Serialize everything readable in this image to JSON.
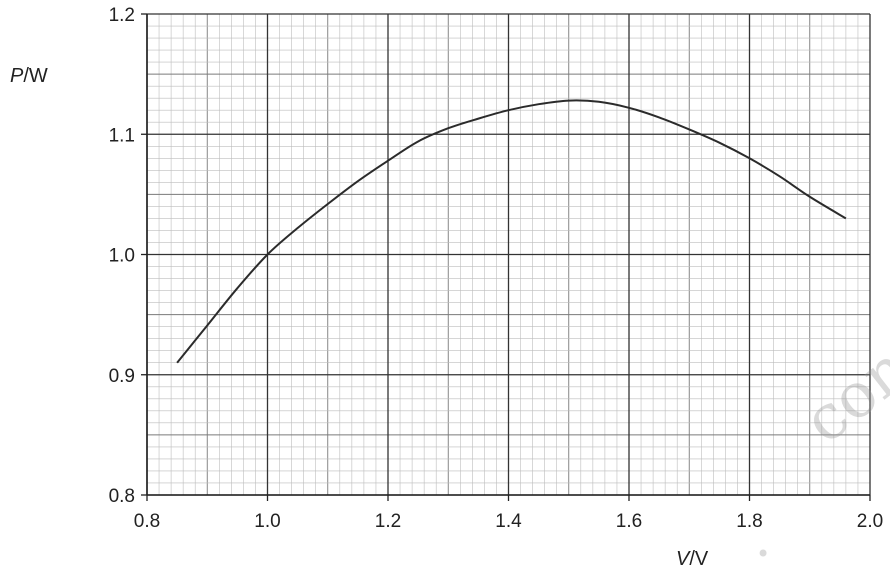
{
  "chart_data": {
    "type": "line",
    "xlabel_var": "V",
    "xlabel_unit": "/V",
    "ylabel_var": "P",
    "ylabel_unit": "/W",
    "xlim": [
      0.8,
      2.0
    ],
    "ylim": [
      0.8,
      1.2
    ],
    "xticks": [
      "0.8",
      "1.0",
      "1.2",
      "1.4",
      "1.6",
      "1.8",
      "2.0"
    ],
    "yticks": [
      "0.8",
      "0.9",
      "1.0",
      "1.1",
      "1.2"
    ],
    "grid": "on",
    "series": [
      {
        "x": [
          0.85,
          0.9,
          0.95,
          1.0,
          1.05,
          1.1,
          1.15,
          1.2,
          1.25,
          1.3,
          1.35,
          1.4,
          1.45,
          1.5,
          1.55,
          1.6,
          1.65,
          1.7,
          1.75,
          1.8,
          1.85,
          1.9,
          1.96
        ],
        "y": [
          0.91,
          0.941,
          0.972,
          1.0,
          1.022,
          1.042,
          1.061,
          1.078,
          1.094,
          1.105,
          1.113,
          1.12,
          1.125,
          1.128,
          1.127,
          1.122,
          1.114,
          1.104,
          1.093,
          1.08,
          1.065,
          1.048,
          1.03
        ]
      }
    ]
  },
  "watermark": {
    "text": "com",
    "color": "#999999"
  }
}
